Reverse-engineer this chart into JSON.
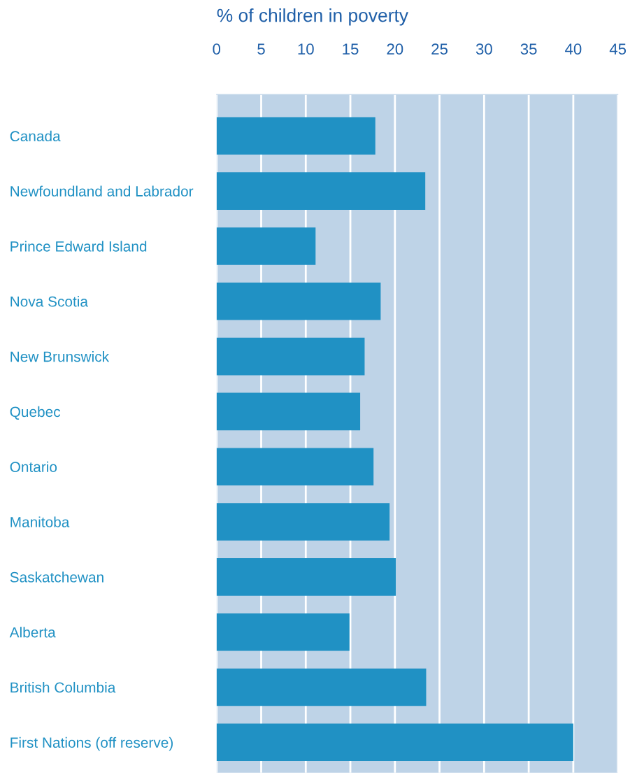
{
  "chart_data": {
    "type": "bar",
    "orientation": "horizontal",
    "xlabel": "% of children in poverty",
    "categories": [
      "Canada",
      "Newfoundland and Labrador",
      "Prince Edward Island",
      "Nova Scotia",
      "New Brunswick",
      "Quebec",
      "Ontario",
      "Manitoba",
      "Saskatchewan",
      "Alberta",
      "British Columbia",
      "First Nations (off reserve)"
    ],
    "values": [
      17.8,
      23.4,
      11.1,
      18.4,
      16.6,
      16.1,
      17.6,
      19.4,
      20.1,
      14.9,
      23.5,
      40.0
    ],
    "color": "#2091c4",
    "xlim": [
      0,
      45
    ],
    "xticks": [
      0,
      5,
      10,
      15,
      20,
      25,
      30,
      35,
      40,
      45
    ],
    "grid": "x"
  }
}
